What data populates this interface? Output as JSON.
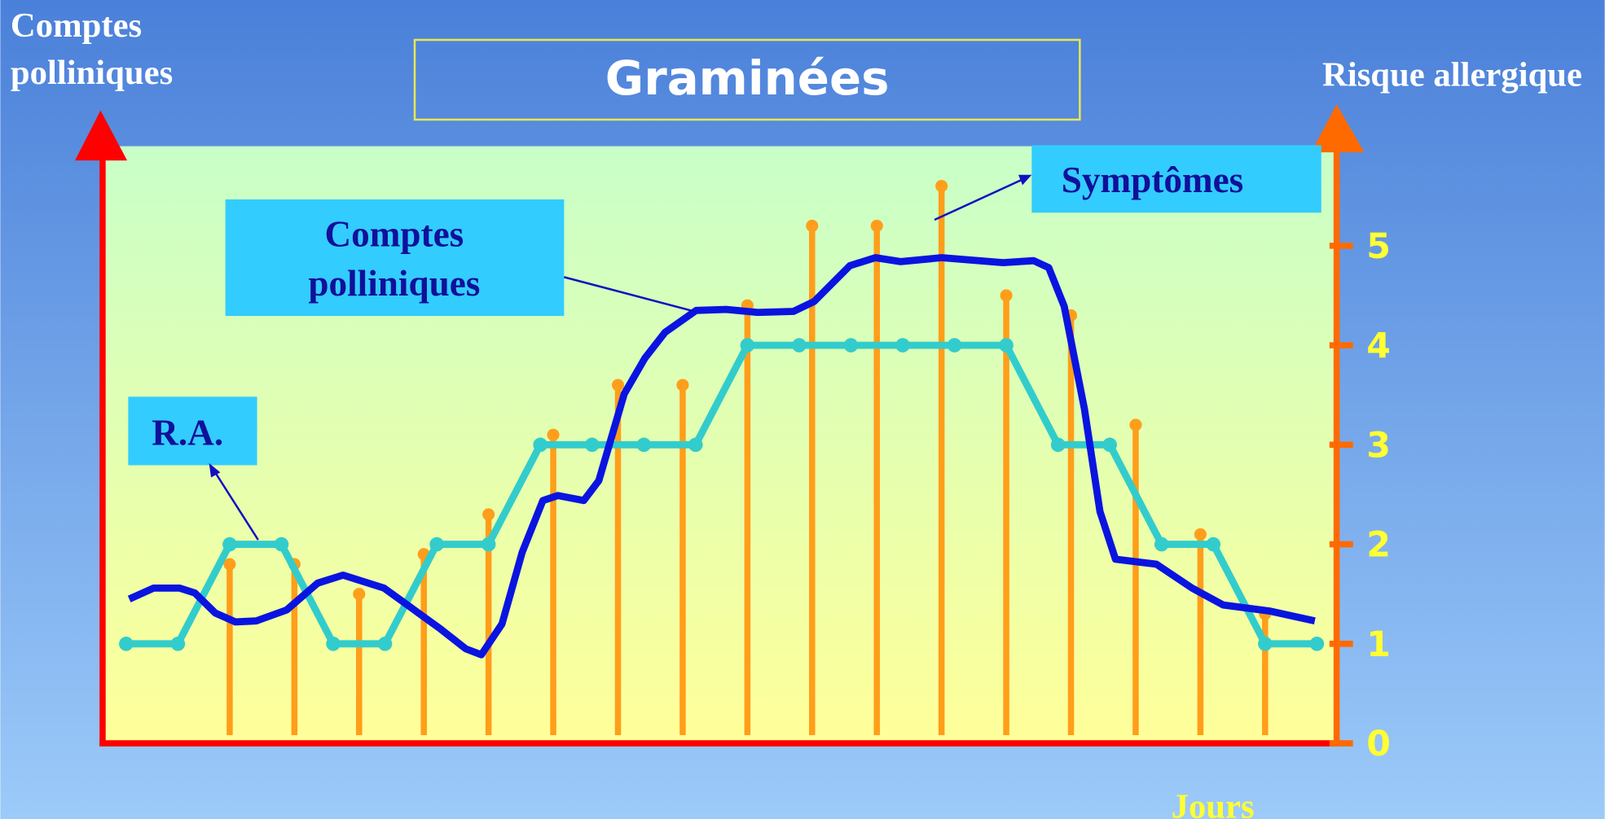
{
  "chart_data": {
    "type": "line",
    "title": "Graminées",
    "y_label": "Comptes polliniques",
    "y2_label": "Risque allergique",
    "x_label": "Jours",
    "xlim": [
      0,
      24
    ],
    "y2lim": [
      0,
      6
    ],
    "y2ticks": [
      0,
      1,
      2,
      3,
      4,
      5
    ],
    "series": [
      {
        "name": "Comptes polliniques",
        "color": "#0a14e0",
        "type": "line",
        "axis": "y2",
        "x": [
          0.56,
          1.03,
          1.53,
          1.83,
          2.22,
          2.61,
          3.01,
          3.6,
          4.2,
          4.69,
          5.48,
          5.88,
          6.57,
          7.06,
          7.36,
          7.76,
          8.15,
          8.55,
          8.84,
          9.34,
          9.63,
          10.12,
          10.52,
          10.91,
          11.51,
          12.1,
          12.7,
          13.39,
          13.79,
          14.48,
          14.97,
          15.46,
          16.25,
          17.44,
          18.03,
          18.32,
          18.62,
          19.01,
          19.31,
          19.61,
          20.4,
          21.09,
          21.69,
          22.58,
          23.46
        ],
        "values": [
          1.45,
          1.56,
          1.56,
          1.51,
          1.31,
          1.22,
          1.23,
          1.34,
          1.61,
          1.69,
          1.56,
          1.41,
          1.15,
          0.95,
          0.89,
          1.2,
          1.92,
          2.44,
          2.49,
          2.44,
          2.64,
          3.51,
          3.87,
          4.13,
          4.35,
          4.36,
          4.33,
          4.34,
          4.44,
          4.8,
          4.88,
          4.84,
          4.88,
          4.83,
          4.85,
          4.78,
          4.39,
          3.36,
          2.33,
          1.85,
          1.8,
          1.56,
          1.39,
          1.33,
          1.23
        ]
      },
      {
        "name": "R.A.",
        "color": "#33cccc",
        "type": "line",
        "markers": true,
        "axis": "y2",
        "x": [
          0.5,
          1.5,
          2.5,
          3.5,
          4.5,
          5.5,
          6.5,
          7.5,
          8.5,
          9.5,
          10.5,
          11.5,
          12.5,
          13.5,
          14.5,
          15.5,
          16.5,
          17.5,
          18.5,
          19.5,
          20.5,
          21.5,
          22.5,
          23.5
        ],
        "values": [
          1,
          1,
          2,
          2,
          1,
          1,
          2,
          2,
          3,
          3,
          3,
          3,
          4,
          4,
          4,
          4,
          4,
          4,
          3,
          3,
          2,
          2,
          1,
          1
        ]
      },
      {
        "name": "Symptômes",
        "color": "#ff9e1a",
        "type": "stem",
        "axis": "y2",
        "x": [
          2.5,
          3.75,
          5,
          6.25,
          7.5,
          8.75,
          10,
          11.25,
          12.5,
          13.75,
          15,
          16.25,
          17.5,
          18.75,
          20,
          21.25,
          22.5
        ],
        "values": [
          1.8,
          1.8,
          1.5,
          1.9,
          2.3,
          3.1,
          3.6,
          3.6,
          4.4,
          5.2,
          5.2,
          5.6,
          4.5,
          4.3,
          3.2,
          2.1,
          1.3
        ]
      }
    ]
  }
}
